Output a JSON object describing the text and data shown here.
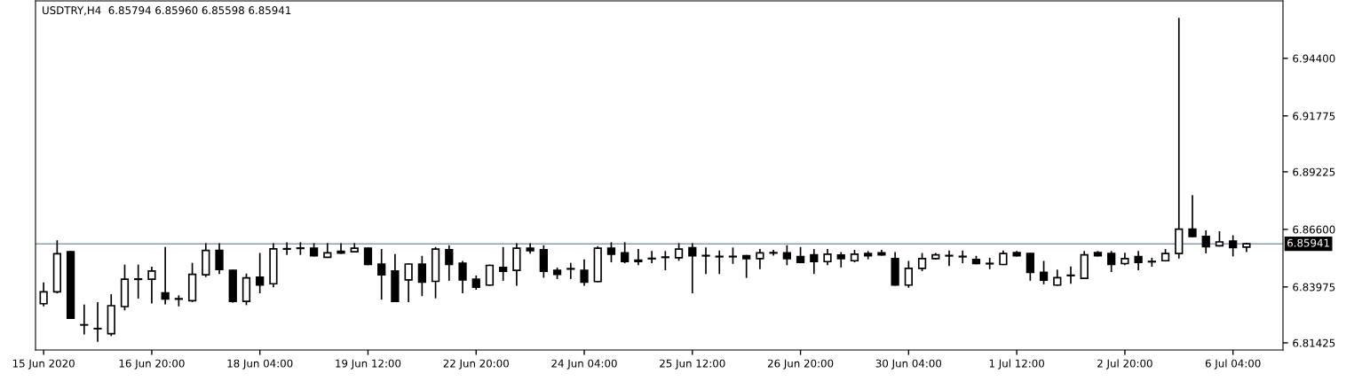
{
  "chart_data": {
    "type": "candlestick",
    "title": "USDTRY,H4  6.85794 6.85960 6.85598 6.85941",
    "categories": [
      "15 Jun 2020",
      null,
      null,
      null,
      null,
      null,
      null,
      null,
      "16 Jun 20:00",
      null,
      null,
      null,
      null,
      null,
      null,
      null,
      "18 Jun 04:00",
      null,
      null,
      null,
      null,
      null,
      null,
      null,
      "19 Jun 12:00",
      null,
      null,
      null,
      null,
      null,
      null,
      null,
      "22 Jun 20:00",
      null,
      null,
      null,
      null,
      null,
      null,
      null,
      "24 Jun 04:00",
      null,
      null,
      null,
      null,
      null,
      null,
      null,
      "25 Jun 12:00",
      null,
      null,
      null,
      null,
      null,
      null,
      null,
      "26 Jun 20:00",
      null,
      null,
      null,
      null,
      null,
      null,
      null,
      "30 Jun 04:00",
      null,
      null,
      null,
      null,
      null,
      null,
      null,
      "1 Jul 12:00",
      null,
      null,
      null,
      null,
      null,
      null,
      null,
      "2 Jul 20:00",
      null,
      null,
      null,
      null,
      null,
      null,
      null,
      "6 Jul 04:00",
      null
    ],
    "ohlc": [
      [
        6.8321,
        6.8415,
        6.8312,
        6.8375
      ],
      [
        6.8375,
        6.8607,
        6.8372,
        6.8549
      ],
      [
        6.8558,
        6.8558,
        6.8255,
        6.8255
      ],
      [
        6.8225,
        6.8314,
        6.8184,
        6.8224
      ],
      [
        6.8208,
        6.8325,
        6.8151,
        6.8207
      ],
      [
        6.8184,
        6.8361,
        6.8177,
        6.8312
      ],
      [
        6.8308,
        6.8496,
        6.8294,
        6.8433
      ],
      [
        6.8432,
        6.8496,
        6.8348,
        6.8434
      ],
      [
        6.8433,
        6.8486,
        6.8325,
        6.847
      ],
      [
        6.837,
        6.8576,
        6.8321,
        6.8343
      ],
      [
        6.8342,
        6.8356,
        6.8312,
        6.8344
      ],
      [
        6.8335,
        6.8504,
        6.8332,
        6.8455
      ],
      [
        6.8453,
        6.8594,
        6.8446,
        6.8564
      ],
      [
        6.8564,
        6.8594,
        6.846,
        6.8477
      ],
      [
        6.8473,
        6.8473,
        6.8329,
        6.8332
      ],
      [
        6.8332,
        6.8455,
        6.8318,
        6.8439
      ],
      [
        6.8442,
        6.8549,
        6.8372,
        6.8406
      ],
      [
        6.8412,
        6.8594,
        6.8399,
        6.8571
      ],
      [
        6.857,
        6.8598,
        6.8547,
        6.8572
      ],
      [
        6.8575,
        6.8598,
        6.8547,
        6.8573
      ],
      [
        6.8574,
        6.8594,
        6.854,
        6.854
      ],
      [
        6.8533,
        6.8594,
        6.8533,
        6.8553
      ],
      [
        6.856,
        6.8594,
        6.8552,
        6.8552
      ],
      [
        6.8558,
        6.8594,
        6.8558,
        6.8574
      ],
      [
        6.8574,
        6.8574,
        6.85,
        6.85
      ],
      [
        6.8502,
        6.8567,
        6.8343,
        6.8453
      ],
      [
        6.847,
        6.8544,
        6.8332,
        6.8332
      ],
      [
        6.843,
        6.8502,
        6.8332,
        6.8502
      ],
      [
        6.8502,
        6.8536,
        6.8359,
        6.8419
      ],
      [
        6.8423,
        6.8576,
        6.8349,
        6.857
      ],
      [
        6.8567,
        6.8584,
        6.8429,
        6.85
      ],
      [
        6.8506,
        6.8513,
        6.8372,
        6.843
      ],
      [
        6.8433,
        6.8446,
        6.8388,
        6.8396
      ],
      [
        6.8406,
        6.8496,
        6.8406,
        6.8496
      ],
      [
        6.8486,
        6.8576,
        6.8429,
        6.8469
      ],
      [
        6.8473,
        6.8594,
        6.8406,
        6.8574
      ],
      [
        6.8574,
        6.8594,
        6.8553,
        6.8563
      ],
      [
        6.8567,
        6.8584,
        6.8443,
        6.8469
      ],
      [
        6.8473,
        6.8482,
        6.8437,
        6.8455
      ],
      [
        6.8479,
        6.8504,
        6.8437,
        6.8481
      ],
      [
        6.8473,
        6.852,
        6.8406,
        6.8419
      ],
      [
        6.8422,
        6.858,
        6.8422,
        6.8574
      ],
      [
        6.8574,
        6.8598,
        6.8513,
        6.8547
      ],
      [
        6.8553,
        6.8598,
        6.8509,
        6.8513
      ],
      [
        6.852,
        6.8567,
        6.85,
        6.8513
      ],
      [
        6.8526,
        6.8558,
        6.8509,
        6.8528
      ],
      [
        6.8532,
        6.8558,
        6.8477,
        6.8534
      ],
      [
        6.8531,
        6.8594,
        6.852,
        6.857
      ],
      [
        6.8576,
        6.8594,
        6.8372,
        6.854
      ],
      [
        6.8541,
        6.8574,
        6.846,
        6.8539
      ],
      [
        6.8535,
        6.856,
        6.846,
        6.8537
      ],
      [
        6.8537,
        6.8574,
        6.8506,
        6.8535
      ],
      [
        6.854,
        6.854,
        6.8442,
        6.8527
      ],
      [
        6.8527,
        6.8567,
        6.8482,
        6.8553
      ],
      [
        6.8552,
        6.8563,
        6.8544,
        6.8554
      ],
      [
        6.8553,
        6.8584,
        6.85,
        6.8527
      ],
      [
        6.8536,
        6.8576,
        6.8509,
        6.8509
      ],
      [
        6.8544,
        6.8567,
        6.846,
        6.8513
      ],
      [
        6.8513,
        6.8567,
        6.85,
        6.8547
      ],
      [
        6.8543,
        6.8553,
        6.849,
        6.8527
      ],
      [
        6.8517,
        6.8563,
        6.8513,
        6.8547
      ],
      [
        6.855,
        6.8558,
        6.8527,
        6.854
      ],
      [
        6.8553,
        6.8563,
        6.8544,
        6.8544
      ],
      [
        6.8527,
        6.8553,
        6.8406,
        6.8406
      ],
      [
        6.8406,
        6.8513,
        6.8397,
        6.8482
      ],
      [
        6.8482,
        6.8549,
        6.8473,
        6.8527
      ],
      [
        6.8527,
        6.8549,
        6.8527,
        6.8544
      ],
      [
        6.8539,
        6.856,
        6.8496,
        6.8541
      ],
      [
        6.8537,
        6.856,
        6.8509,
        6.8535
      ],
      [
        6.8523,
        6.8536,
        6.8504,
        6.8504
      ],
      [
        6.8503,
        6.8527,
        6.8482,
        6.8505
      ],
      [
        6.85,
        6.856,
        6.85,
        6.855
      ],
      [
        6.8554,
        6.8558,
        6.854,
        6.854
      ],
      [
        6.855,
        6.855,
        6.8429,
        6.8464
      ],
      [
        6.8464,
        6.8513,
        6.8413,
        6.8429
      ],
      [
        6.8406,
        6.8473,
        6.8406,
        6.844
      ],
      [
        6.8449,
        6.8487,
        6.8415,
        6.8451
      ],
      [
        6.8437,
        6.8558,
        6.8437,
        6.8544
      ],
      [
        6.8554,
        6.8558,
        6.854,
        6.854
      ],
      [
        6.855,
        6.8558,
        6.8469,
        6.85
      ],
      [
        6.8504,
        6.855,
        6.85,
        6.8527
      ],
      [
        6.8536,
        6.8558,
        6.8477,
        6.8509
      ],
      [
        6.8512,
        6.8527,
        6.8493,
        6.8514
      ],
      [
        6.8517,
        6.8567,
        6.8517,
        6.855
      ],
      [
        6.855,
        6.9621,
        6.8531,
        6.8661
      ],
      [
        6.8661,
        6.8813,
        6.8628,
        6.8628
      ],
      [
        6.8628,
        6.8652,
        6.8554,
        6.8581
      ],
      [
        6.8585,
        6.8648,
        6.8585,
        6.8603
      ],
      [
        6.8607,
        6.863,
        6.854,
        6.8577
      ],
      [
        6.85794,
        6.8596,
        6.85598,
        6.85941
      ]
    ],
    "ylim": [
      6.811,
      6.9702
    ],
    "yticks": [
      6.81425,
      6.83975,
      {
        "value": 6.866,
        "label": "6.86600"
      },
      6.89225,
      6.91775,
      {
        "value": 6.944,
        "label": "6.94400"
      }
    ],
    "ref_lines": [
      {
        "axis": "y",
        "value": 6.85941,
        "label": "6.85941",
        "color": "#8a9bb0"
      }
    ]
  }
}
